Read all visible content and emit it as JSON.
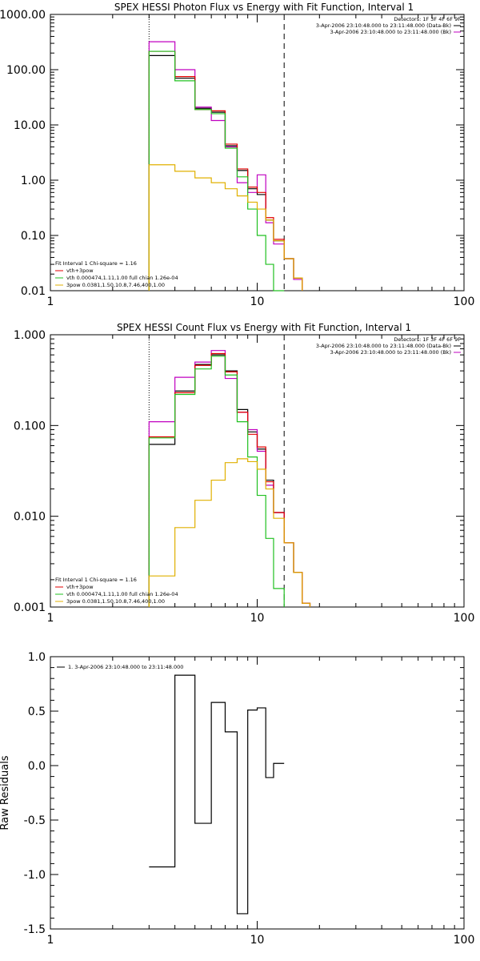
{
  "chart_data": [
    {
      "type": "line",
      "title": "SPEX HESSI Photon Flux vs Energy with Fit Function, Interval 1",
      "xlabel": "",
      "ylabel": "",
      "xscale": "log",
      "yscale": "log",
      "xlim": [
        1,
        100
      ],
      "ylim": [
        0.01,
        1000
      ],
      "x_tick_labels": [
        "1",
        "10",
        "100"
      ],
      "y_tick_labels": [
        "0.01",
        "0.10",
        "1.00",
        "10.00",
        "100.00",
        "1000.00"
      ],
      "vlines": [
        {
          "x": 3.0,
          "style": "dotted"
        },
        {
          "x": 13.5,
          "style": "dashed"
        }
      ],
      "bin_edges": [
        3.0,
        4.0,
        5.0,
        6.0,
        7.0,
        8.0,
        9.0,
        10.0,
        11.0,
        12.0,
        13.5,
        15.0,
        16.5,
        18.0
      ],
      "series": [
        {
          "name": "3-Apr-2006 23:10:48.000 to 23:11:48.000 (Data-Bk)",
          "color": "#000000",
          "values": [
            180,
            70,
            20,
            17,
            4.2,
            1.5,
            0.7,
            0.55,
            0.19,
            0.08,
            0.038,
            0.017,
            null
          ]
        },
        {
          "name": "3-Apr-2006 23:10:48.000 to 23:11:48.000 (Bk)",
          "color": "#c000c0",
          "values": [
            320,
            100,
            21,
            12,
            4.0,
            0.9,
            0.6,
            1.25,
            0.17,
            0.07,
            0.038,
            0.016,
            null
          ]
        },
        {
          "name": "vth+3pow",
          "color": "#e00000",
          "values": [
            215,
            75,
            19,
            18,
            4.5,
            1.6,
            0.75,
            0.6,
            0.21,
            0.085,
            0.038,
            0.017,
            null
          ]
        },
        {
          "name": "vth 0.000474,1.11,1.00  full chian 1.26e-04",
          "color": "#20c020",
          "values": [
            215,
            63,
            19,
            16,
            3.8,
            1.15,
            0.3,
            0.1,
            0.03,
            0.009,
            null,
            null,
            null
          ]
        },
        {
          "name": "3pow 0.0381,1.50,10.8,7.46,400,1.00",
          "color": "#e0b000",
          "values": [
            1.9,
            1.45,
            1.1,
            0.9,
            0.7,
            0.52,
            0.4,
            0.3,
            0.19,
            0.08,
            0.038,
            0.017,
            null
          ]
        }
      ],
      "legend_left": [
        "Fit Interval 1    Chi-square = 1.16",
        "vth+3pow",
        "vth 0.000474,1.11,1.00  full chian 1.26e-04",
        "3pow 0.0381,1.50,10.8,7.46,400,1.00"
      ],
      "legend_right": [
        "Detectors: 1F 3F 4F 6F 9F",
        "3-Apr-2006 23:10:48.000 to 23:11:48.000 (Data-Bk)",
        "3-Apr-2006 23:10:48.000 to 23:11:48.000 (Bk)"
      ]
    },
    {
      "type": "line",
      "title": "SPEX HESSI Count Flux vs Energy with Fit Function, Interval 1",
      "xlabel": "",
      "ylabel": "",
      "xscale": "log",
      "yscale": "log",
      "xlim": [
        1,
        100
      ],
      "ylim": [
        0.001,
        1
      ],
      "x_tick_labels": [
        "1",
        "10",
        "100"
      ],
      "y_tick_labels": [
        "0.001",
        "0.010",
        "0.100",
        "1.000"
      ],
      "vlines": [
        {
          "x": 3.0,
          "style": "dotted"
        },
        {
          "x": 13.5,
          "style": "dashed"
        }
      ],
      "bin_edges": [
        3.0,
        4.0,
        5.0,
        6.0,
        7.0,
        8.0,
        9.0,
        10.0,
        11.0,
        12.0,
        13.5,
        15.0,
        16.5,
        18.0
      ],
      "series": [
        {
          "name": "3-Apr-2006 23:10:48.000 to 23:11:48.000 (Data-Bk)",
          "color": "#000000",
          "values": [
            0.062,
            0.24,
            0.47,
            0.6,
            0.4,
            0.15,
            0.085,
            0.055,
            0.025,
            0.011,
            0.0051,
            0.0024,
            0.0011
          ]
        },
        {
          "name": "3-Apr-2006 23:10:48.000 to 23:11:48.000 (Bk)",
          "color": "#c000c0",
          "values": [
            0.11,
            0.34,
            0.5,
            0.67,
            0.33,
            0.14,
            0.09,
            0.052,
            0.022,
            0.011,
            0.0051,
            0.0024,
            0.0011
          ]
        },
        {
          "name": "vth+3pow",
          "color": "#e00000",
          "values": [
            0.075,
            0.23,
            0.46,
            0.62,
            0.39,
            0.14,
            0.08,
            0.058,
            0.024,
            0.011,
            0.0051,
            0.0024,
            0.0011
          ]
        },
        {
          "name": "vth 0.000474,1.11,1.00  full chian 1.26e-04",
          "color": "#20c020",
          "values": [
            0.073,
            0.22,
            0.42,
            0.58,
            0.36,
            0.11,
            0.045,
            0.017,
            0.0057,
            0.0016,
            null,
            null,
            null
          ]
        },
        {
          "name": "3pow 0.0381,1.50,10.8,7.46,400,1.00",
          "color": "#e0b000",
          "values": [
            0.0022,
            0.0075,
            0.015,
            0.025,
            0.039,
            0.043,
            0.04,
            0.033,
            0.02,
            0.0095,
            0.0051,
            0.0024,
            0.0011
          ]
        }
      ],
      "legend_left": [
        "Fit Interval 1    Chi-square = 1.16",
        "vth+3pow",
        "vth 0.000474,1.11,1.00  full chian 1.26e-04",
        "3pow 0.0381,1.50,10.8,7.46,400,1.00"
      ],
      "legend_right": [
        "Detectors: 1F 3F 4F 6F 9F",
        "3-Apr-2006 23:10:48.000 to 23:11:48.000 (Data-Bk)",
        "3-Apr-2006 23:10:48.000 to 23:11:48.000 (Bk)"
      ]
    },
    {
      "type": "line",
      "title": "",
      "xlabel": "",
      "ylabel": "Raw Residuals",
      "xscale": "log",
      "yscale": "linear",
      "xlim": [
        1,
        100
      ],
      "ylim": [
        -1.5,
        1.0
      ],
      "x_tick_labels": [
        "1",
        "10",
        "100"
      ],
      "y_tick_labels": [
        "1.0",
        "0.5",
        "0.0",
        "-0.5",
        "-1.0",
        "-1.5"
      ],
      "bin_edges": [
        3.0,
        4.0,
        5.0,
        6.0,
        7.0,
        8.0,
        9.0,
        10.0,
        11.0,
        12.0,
        13.5
      ],
      "series": [
        {
          "name": "1. 3-Apr-2006 23:10:48.000 to 23:11:48.000",
          "color": "#000000",
          "values": [
            -0.93,
            0.83,
            -0.53,
            0.58,
            0.31,
            -1.36,
            0.51,
            0.53,
            -0.11,
            0.02
          ]
        }
      ],
      "legend_left": [
        "1. 3-Apr-2006 23:10:48.000 to 23:11:48.000"
      ]
    }
  ]
}
